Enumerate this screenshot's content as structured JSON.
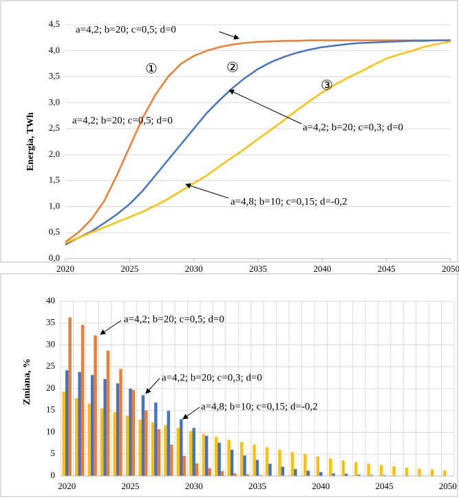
{
  "chart_data": [
    {
      "type": "line",
      "y_label": "Energia, TWh",
      "x": [
        2020,
        2021,
        2022,
        2023,
        2024,
        2025,
        2026,
        2027,
        2028,
        2029,
        2030,
        2031,
        2032,
        2033,
        2034,
        2035,
        2036,
        2037,
        2038,
        2039,
        2040,
        2041,
        2042,
        2043,
        2044,
        2045,
        2046,
        2047,
        2048,
        2049,
        2050
      ],
      "xlim": [
        2020,
        2050
      ],
      "xticks": [
        2020,
        2025,
        2030,
        2035,
        2040,
        2045,
        2050
      ],
      "ylim": [
        0,
        4.5
      ],
      "yticks": [
        {
          "value": 0,
          "label": "0,0"
        },
        {
          "value": 0.5,
          "label": "0,5"
        },
        {
          "value": 1,
          "label": "1,0"
        },
        {
          "value": 1.5,
          "label": "1,5"
        },
        {
          "value": 2,
          "label": "2,0"
        },
        {
          "value": 2.5,
          "label": "2,5"
        },
        {
          "value": 3,
          "label": "3,0"
        },
        {
          "value": 3.5,
          "label": "3,5"
        },
        {
          "value": 4,
          "label": "4,0"
        },
        {
          "value": 4.5,
          "label": "4,5"
        }
      ],
      "grid": true,
      "series": [
        {
          "color": "#ED7D31",
          "values": [
            0.32,
            0.5,
            0.75,
            1.1,
            1.6,
            2.15,
            2.7,
            3.15,
            3.5,
            3.75,
            3.9,
            4.0,
            4.07,
            4.12,
            4.15,
            4.17,
            4.18,
            4.19,
            4.19,
            4.2,
            4.2,
            4.2,
            4.2,
            4.2,
            4.2,
            4.2,
            4.2,
            4.2,
            4.2,
            4.2,
            4.2
          ]
        },
        {
          "color": "#4472C4",
          "values": [
            0.27,
            0.4,
            0.52,
            0.68,
            0.85,
            1.05,
            1.3,
            1.6,
            1.9,
            2.2,
            2.5,
            2.8,
            3.05,
            3.28,
            3.48,
            3.65,
            3.78,
            3.88,
            3.96,
            4.02,
            4.07,
            4.1,
            4.13,
            4.15,
            4.16,
            4.17,
            4.18,
            4.19,
            4.19,
            4.2,
            4.2
          ]
        },
        {
          "color": "#FFC000",
          "values": [
            0.3,
            0.4,
            0.5,
            0.6,
            0.7,
            0.8,
            0.9,
            1.02,
            1.15,
            1.3,
            1.45,
            1.6,
            1.78,
            1.95,
            2.12,
            2.3,
            2.48,
            2.66,
            2.85,
            3.03,
            3.2,
            3.35,
            3.48,
            3.6,
            3.73,
            3.85,
            3.93,
            4.0,
            4.08,
            4.13,
            4.18
          ]
        }
      ],
      "annotations": [
        "a=4,2; b=20; c=0,5; d=0",
        "①",
        "②",
        "③",
        "a=4,2; b=20; c=0,5; d=0",
        "a=4,2; b=20; c=0,3; d=0",
        "a=4,8; b=10; c=0,15; d=-0,2"
      ]
    },
    {
      "type": "bar",
      "y_label": "Zmiana, %",
      "categories": [
        "2020",
        null,
        null,
        null,
        null,
        "2025",
        null,
        null,
        null,
        null,
        "2030",
        null,
        null,
        null,
        null,
        "2035",
        null,
        null,
        null,
        null,
        "2040",
        null,
        null,
        null,
        null,
        "2045",
        null,
        null,
        null,
        null,
        "2050"
      ],
      "ylim": [
        0,
        40
      ],
      "yticks": [
        0,
        5,
        10,
        15,
        20,
        25,
        30,
        35,
        40
      ],
      "grid": true,
      "series": [
        {
          "color": "#FFC000",
          "values": [
            19.3,
            17.8,
            16.6,
            15.5,
            14.6,
            13.8,
            12.9,
            12.3,
            11.6,
            11.0,
            10.3,
            9.6,
            9.0,
            8.3,
            7.8,
            7.2,
            6.6,
            6.0,
            5.5,
            5.0,
            4.5,
            4.0,
            3.6,
            3.2,
            2.8,
            2.5,
            2.2,
            1.9,
            1.7,
            1.5,
            1.3
          ]
        },
        {
          "color": "#4472C4",
          "values": [
            24.2,
            23.8,
            23.1,
            22.2,
            21.2,
            20.0,
            18.5,
            16.8,
            14.9,
            13.0,
            11.0,
            9.2,
            7.6,
            6.0,
            4.7,
            3.7,
            2.8,
            2.1,
            1.6,
            1.2,
            0.9,
            0.6,
            0.5,
            0.3,
            0.2,
            0.2,
            0.1,
            0.1,
            0.1,
            0,
            0
          ]
        },
        {
          "color": "#ED7D31",
          "values": [
            36.3,
            34.6,
            32.2,
            28.7,
            24.5,
            19.7,
            15.0,
            10.7,
            7.2,
            4.6,
            2.9,
            1.8,
            1.1,
            0.6,
            0.4,
            0.2,
            0.1,
            0.1,
            0,
            0,
            0,
            0,
            0,
            0,
            0,
            0,
            0,
            0,
            0,
            0,
            0
          ]
        }
      ],
      "annotations": [
        "a=4,2; b=20; c=0,5; d=0",
        "a=4,2; b=20; c=0,3; d=0",
        "a=4,8; b=10; c=0,15; d=-0,2"
      ]
    }
  ]
}
